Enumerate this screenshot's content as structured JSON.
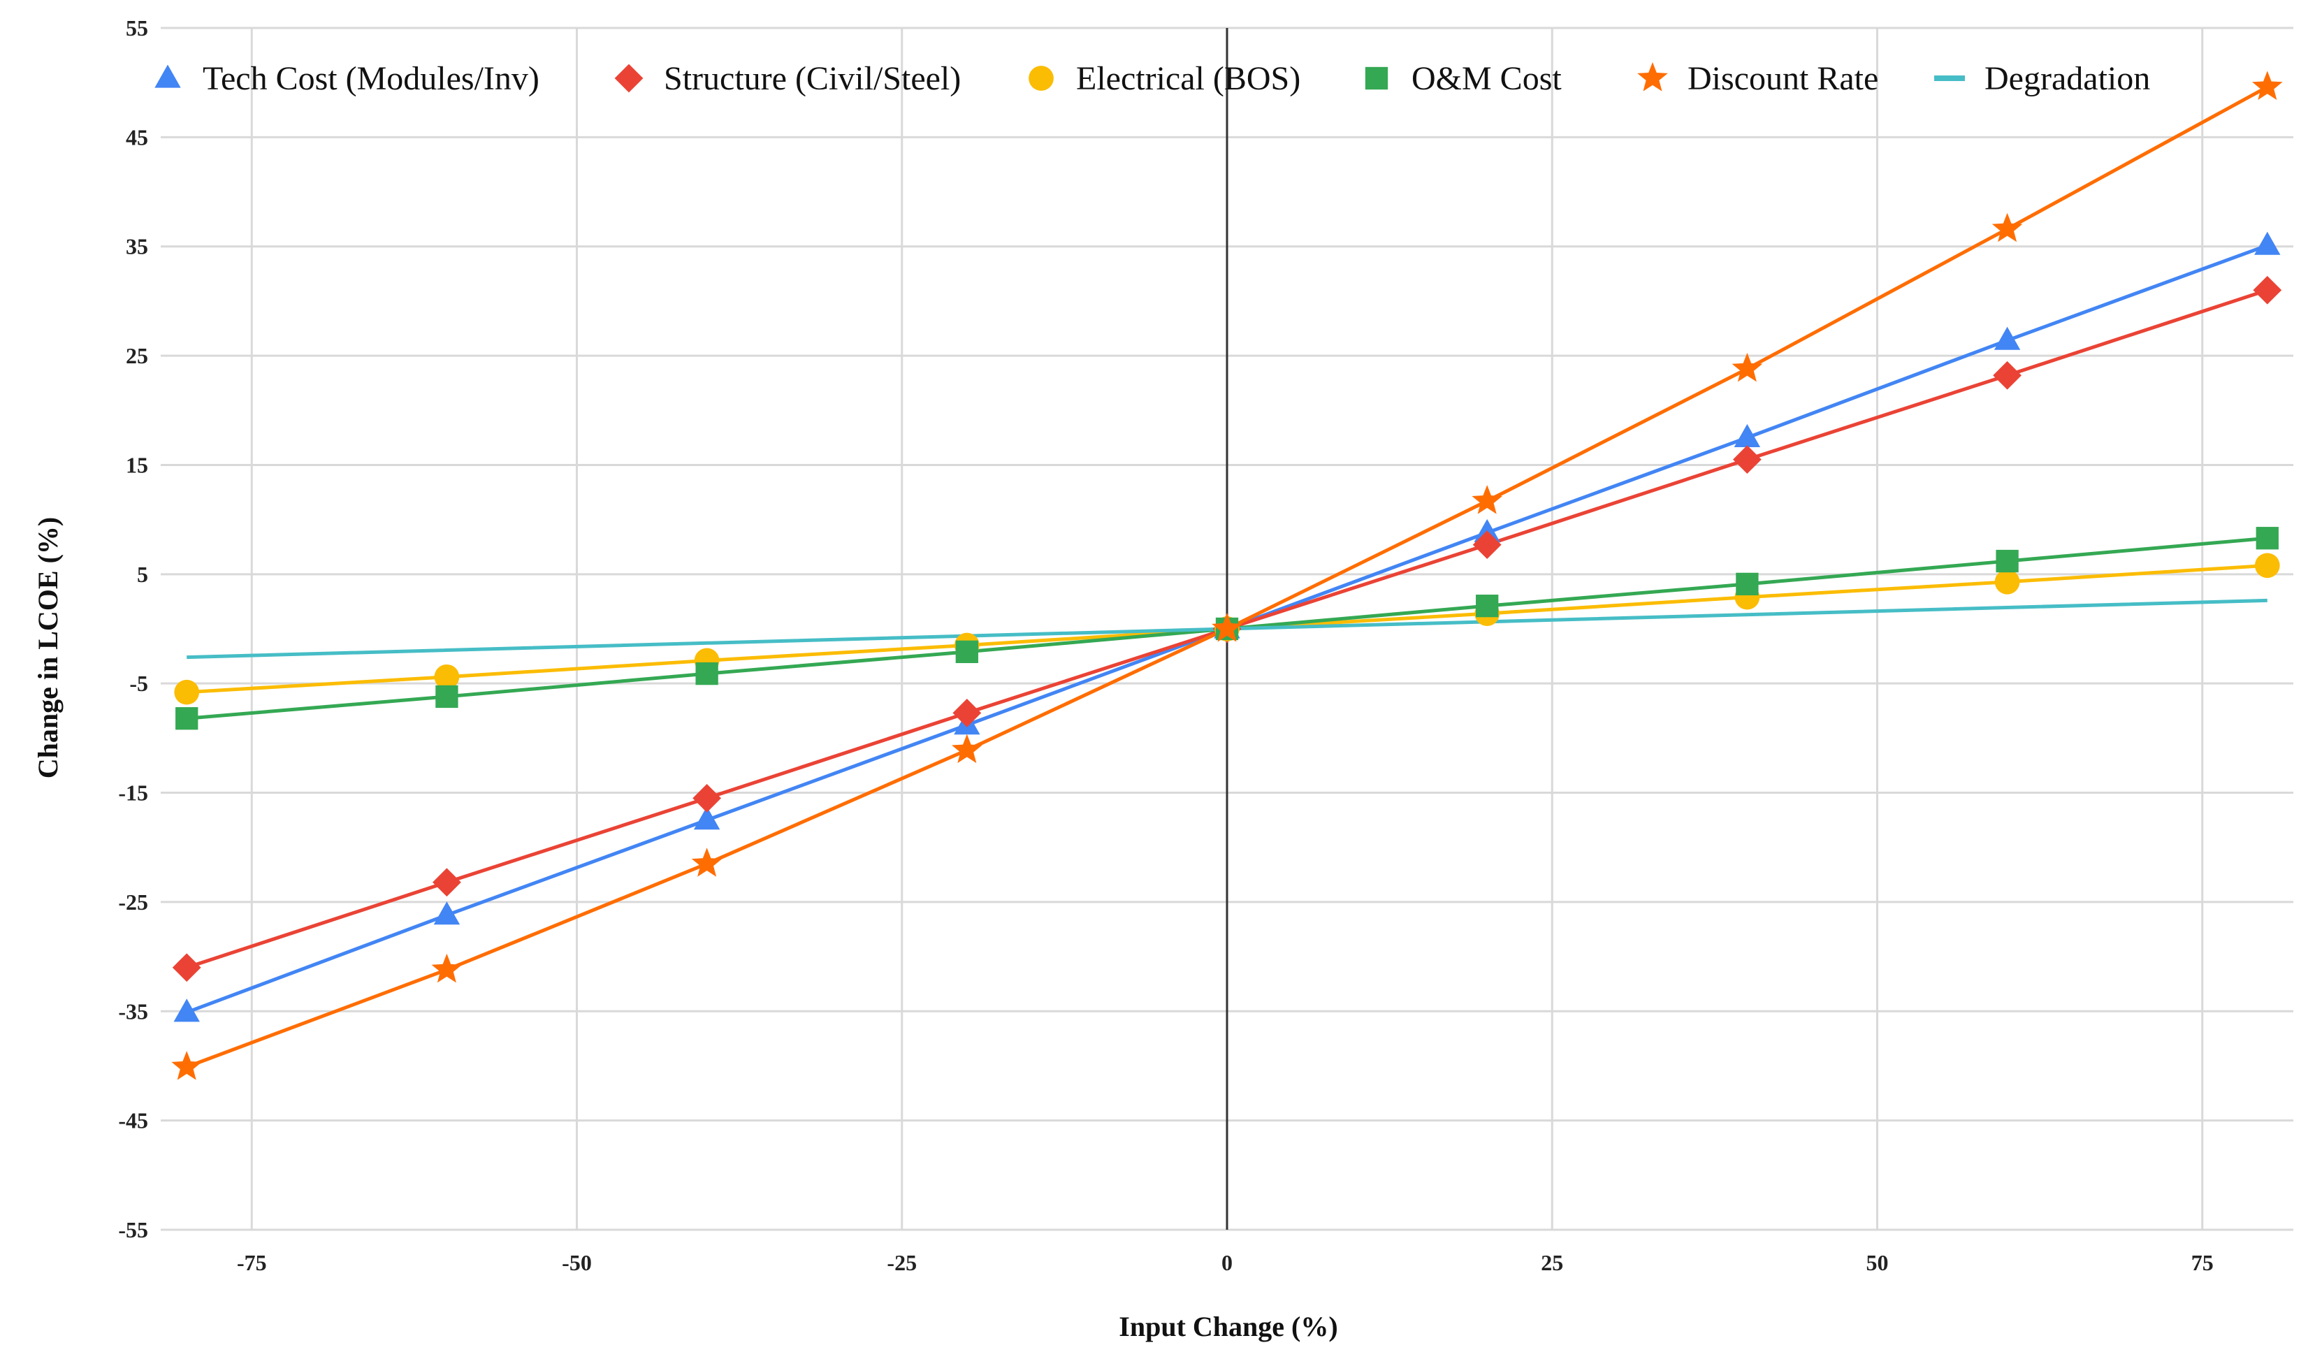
{
  "chart_data": {
    "type": "line",
    "title": "",
    "xlabel": "Input Change (%)",
    "ylabel": "Change in LCOE (%)",
    "xlim": [
      -82,
      82
    ],
    "ylim": [
      -55,
      55
    ],
    "x_ticks": [
      "-75",
      "-50",
      "-25",
      "0",
      "25",
      "50",
      "75"
    ],
    "x_tick_values": [
      -75,
      -50,
      -25,
      0,
      25,
      50,
      75
    ],
    "y_ticks": [
      "55",
      "45",
      "35",
      "25",
      "15",
      "5",
      "-5",
      "-15",
      "-25",
      "-35",
      "-45",
      "-55"
    ],
    "y_tick_values": [
      55,
      45,
      35,
      25,
      15,
      5,
      -5,
      -15,
      -25,
      -35,
      -45,
      -55
    ],
    "grid": true,
    "legend_position": "top",
    "x": [
      -80,
      -60,
      -40,
      -20,
      0,
      20,
      40,
      60,
      80
    ],
    "series": [
      {
        "name": "Tech Cost (Modules/Inv)",
        "color": "#4285F4",
        "marker": "triangle",
        "values": [
          -35.1,
          -26.2,
          -17.5,
          -8.8,
          0,
          8.8,
          17.5,
          26.4,
          35.1
        ]
      },
      {
        "name": "Structure (Civil/Steel)",
        "color": "#EA4335",
        "marker": "diamond",
        "values": [
          -31.0,
          -23.2,
          -15.5,
          -7.7,
          0,
          7.7,
          15.5,
          23.2,
          31.0
        ]
      },
      {
        "name": "Electrical (BOS)",
        "color": "#FBBC04",
        "marker": "circle",
        "values": [
          -5.8,
          -4.4,
          -2.9,
          -1.5,
          0,
          1.4,
          2.9,
          4.3,
          5.8
        ]
      },
      {
        "name": "O&M Cost",
        "color": "#34A853",
        "marker": "square",
        "values": [
          -8.2,
          -6.2,
          -4.1,
          -2.1,
          0,
          2.1,
          4.1,
          6.2,
          8.3
        ]
      },
      {
        "name": "Discount Rate",
        "color": "#FF6D01",
        "marker": "star",
        "values": [
          -40.1,
          -31.2,
          -21.5,
          -11.1,
          0,
          11.7,
          23.8,
          36.6,
          49.6
        ]
      },
      {
        "name": "Degradation",
        "color": "#46BDC6",
        "marker": "line",
        "values": [
          -2.6,
          null,
          null,
          null,
          0,
          null,
          null,
          null,
          2.6
        ]
      }
    ]
  }
}
